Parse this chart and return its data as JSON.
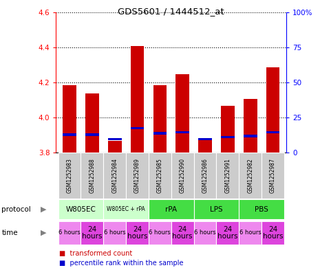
{
  "title": "GDS5601 / 1444512_at",
  "samples": [
    "GSM1252983",
    "GSM1252988",
    "GSM1252984",
    "GSM1252989",
    "GSM1252985",
    "GSM1252990",
    "GSM1252986",
    "GSM1252991",
    "GSM1252982",
    "GSM1252987"
  ],
  "transformed_counts": [
    4.185,
    4.135,
    3.865,
    4.405,
    4.185,
    4.245,
    3.875,
    4.065,
    4.105,
    4.285
  ],
  "baseline": 3.8,
  "percentile_values": [
    3.895,
    3.895,
    3.872,
    3.932,
    3.902,
    3.908,
    3.872,
    3.882,
    3.887,
    3.908
  ],
  "percentile_heights": [
    0.014,
    0.014,
    0.012,
    0.014,
    0.014,
    0.014,
    0.012,
    0.014,
    0.014,
    0.014
  ],
  "ylim_left": [
    3.8,
    4.6
  ],
  "ylim_right": [
    0,
    100
  ],
  "yticks_left": [
    3.8,
    4.0,
    4.2,
    4.4,
    4.6
  ],
  "yticks_right": [
    0,
    25,
    50,
    75,
    100
  ],
  "protocols": [
    {
      "label": "W805EC",
      "start": 0,
      "end": 2,
      "color": "#ccffcc"
    },
    {
      "label": "W805EC + rPA",
      "start": 2,
      "end": 4,
      "color": "#ccffcc"
    },
    {
      "label": "rPA",
      "start": 4,
      "end": 6,
      "color": "#44dd44"
    },
    {
      "label": "LPS",
      "start": 6,
      "end": 8,
      "color": "#44dd44"
    },
    {
      "label": "PBS",
      "start": 8,
      "end": 10,
      "color": "#44dd44"
    }
  ],
  "times": [
    "6 hours",
    "24\nhours",
    "6 hours",
    "24\nhours",
    "6 hours",
    "24\nhours",
    "6 hours",
    "24\nhours",
    "6 hours",
    "24\nhours"
  ],
  "time_color_6h": "#ee88ee",
  "time_color_24h": "#dd44dd",
  "bar_color": "#cc0000",
  "percentile_color": "#0000cc",
  "bg_color": "#ffffff",
  "sample_bg_color": "#cccccc",
  "bar_width": 0.6
}
